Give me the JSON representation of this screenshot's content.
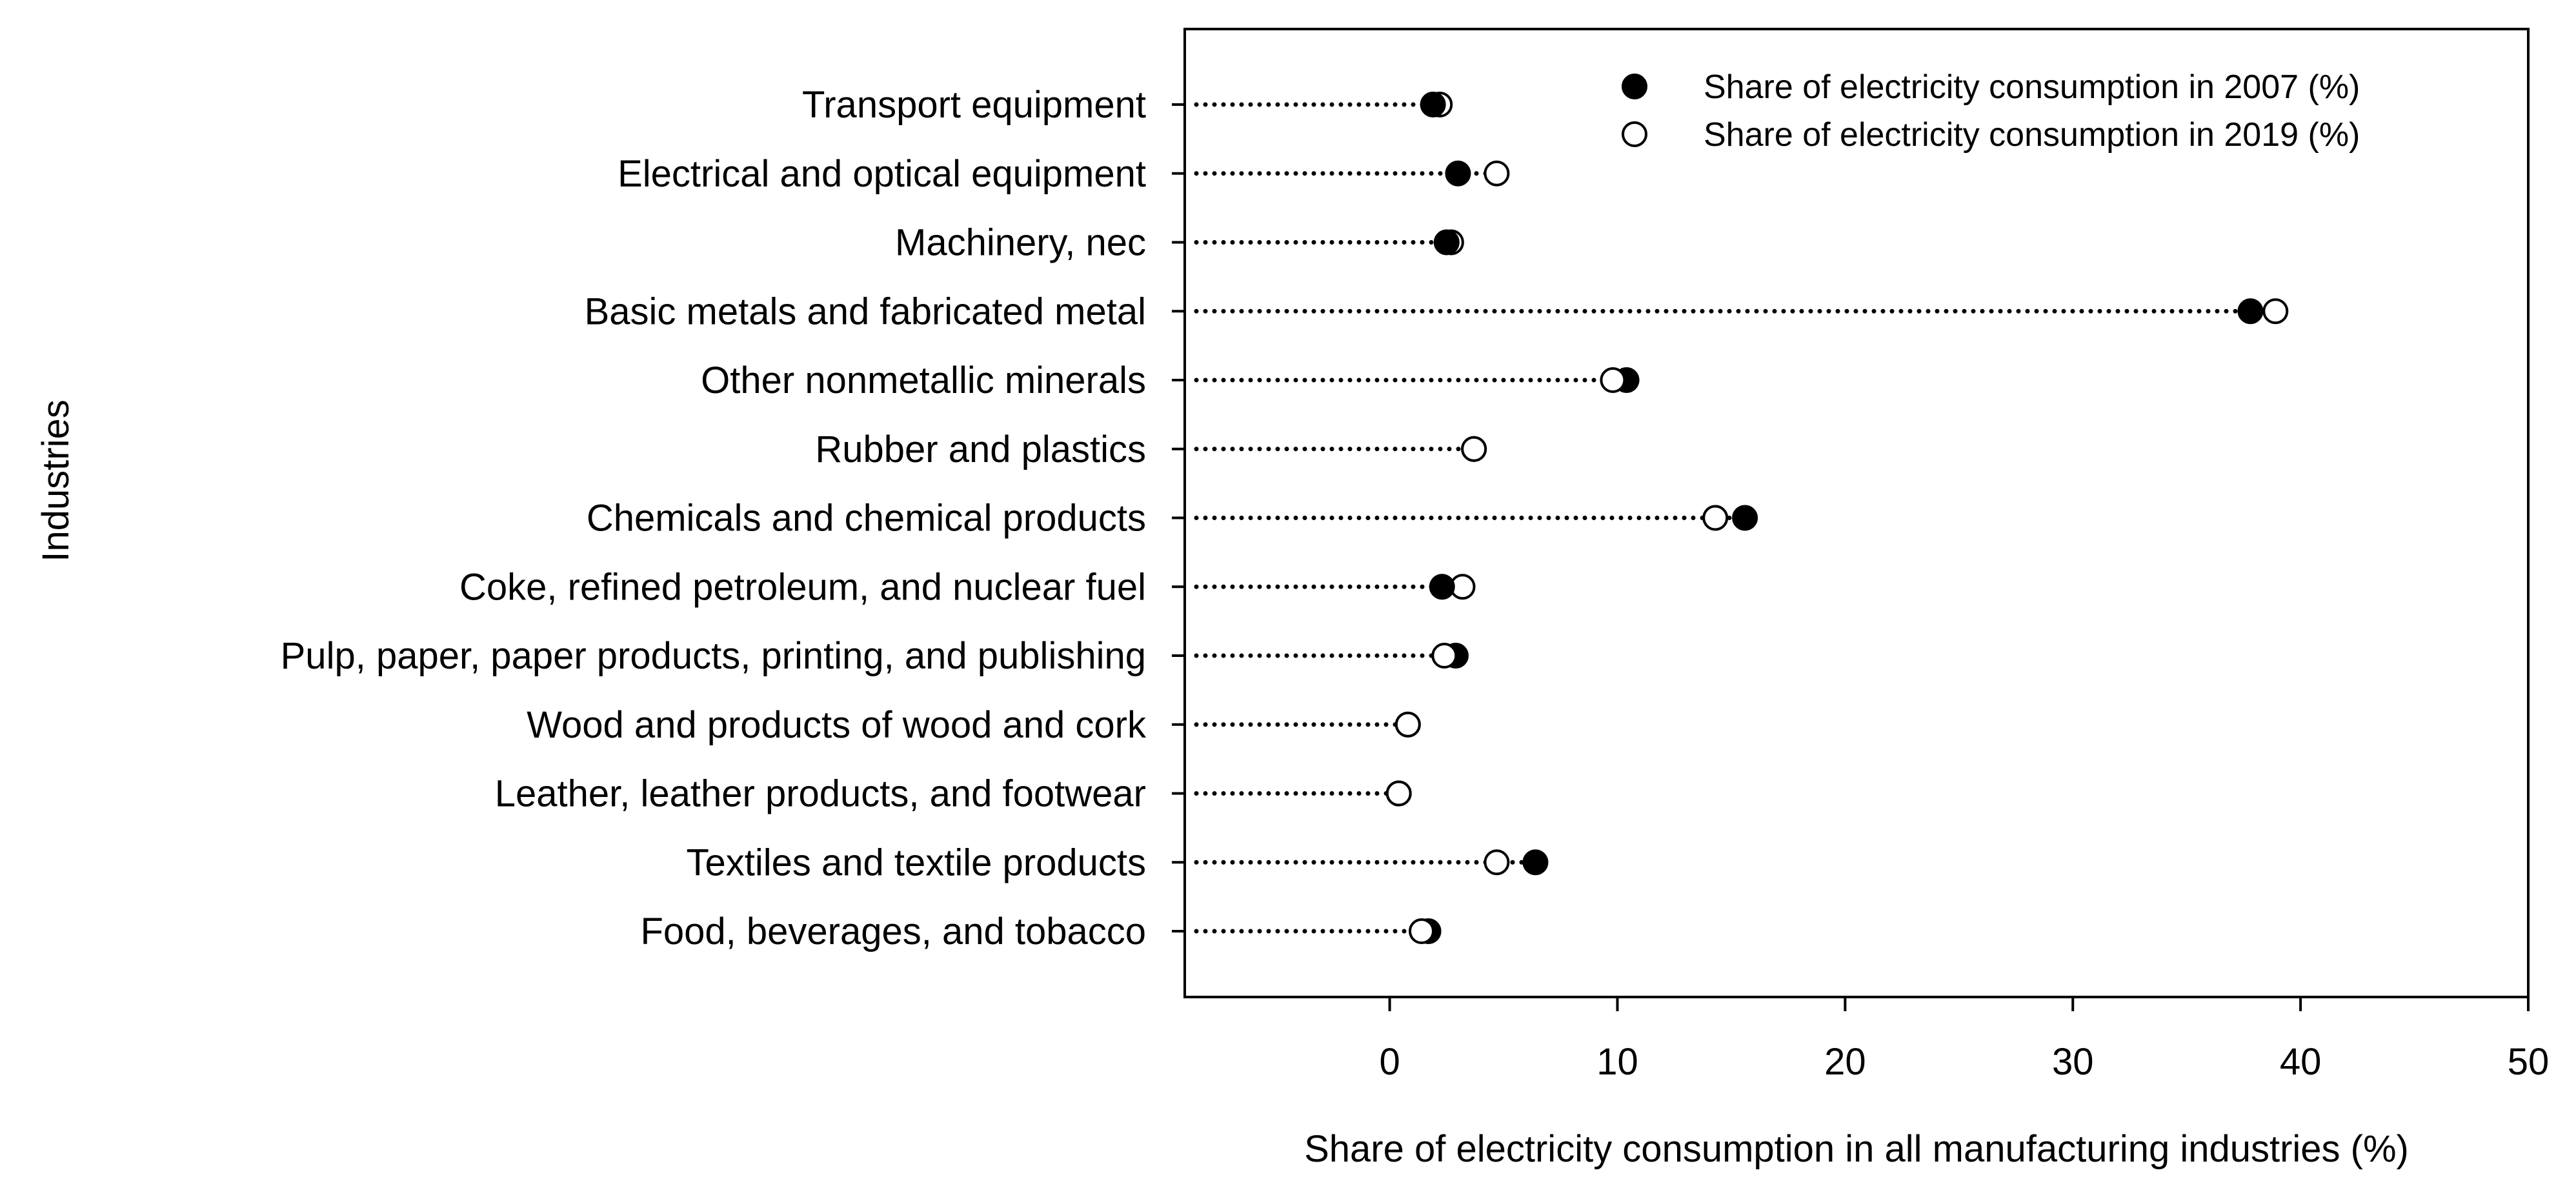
{
  "chart_data": {
    "type": "scatter",
    "subtype": "dot-plot",
    "xlabel": "Share of electricity consumption in all manufacturing industries (%)",
    "ylabel": "Industries",
    "xlim": [
      -9,
      50
    ],
    "xticks": [
      0,
      10,
      20,
      30,
      40,
      50
    ],
    "legend_position": "top-right",
    "categories": [
      "Transport equipment",
      "Electrical and optical equipment",
      "Machinery, nec",
      "Basic metals and fabricated metal",
      "Other nonmetallic minerals",
      "Rubber and plastics",
      "Chemicals and chemical products",
      "Coke, refined petroleum, and nuclear fuel",
      "Pulp, paper, paper products, printing, and publishing",
      "Wood and products of wood and cork",
      "Leather, leather products, and footwear",
      "Textiles and textile products",
      "Food, beverages, and tobacco"
    ],
    "series": [
      {
        "name": "Share of electricity consumption in 2007 (%)",
        "marker": "filled-circle",
        "color": "#000000",
        "values": [
          1.9,
          3.0,
          2.5,
          37.8,
          10.4,
          3.7,
          15.6,
          2.3,
          2.9,
          0.8,
          0.4,
          6.4,
          1.7
        ]
      },
      {
        "name": "Share of electricity consumption in 2019 (%)",
        "marker": "open-circle",
        "color": "#000000",
        "values": [
          2.2,
          4.7,
          2.7,
          38.9,
          9.8,
          3.7,
          14.3,
          3.2,
          2.4,
          0.8,
          0.4,
          4.7,
          1.4
        ]
      }
    ]
  }
}
